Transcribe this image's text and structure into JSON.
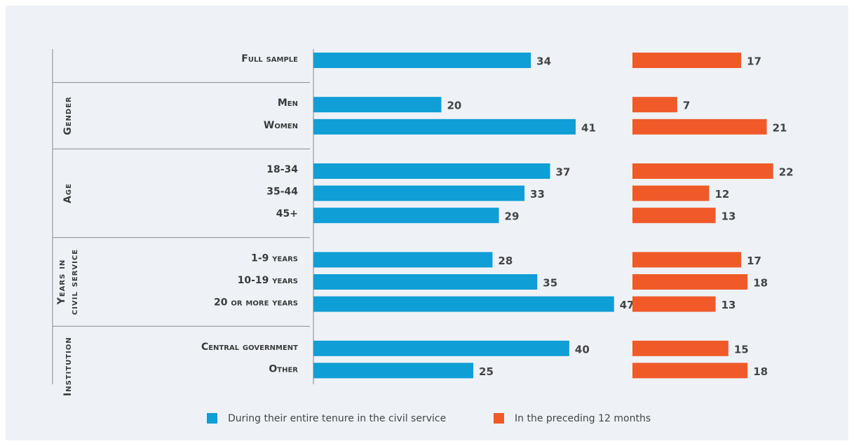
{
  "chart_data": {
    "type": "bar",
    "categories": [
      "Full sample",
      "Men",
      "Women",
      "18-34",
      "35-44",
      "45+",
      "1-9 years",
      "10-19 years",
      "20 or more years",
      "Central government",
      "Other"
    ],
    "category_groups": [
      null,
      "Gender",
      "Gender",
      "Age",
      "Age",
      "Age",
      "Years in civil service",
      "Years in civil service",
      "Years in civil service",
      "Institution",
      "Institution"
    ],
    "series": [
      {
        "name": "During their entire tenure in the civil service",
        "color": "#0f9ed5",
        "values": [
          34,
          20,
          41,
          37,
          33,
          29,
          28,
          35,
          47,
          40,
          25
        ]
      },
      {
        "name": "In the preceding 12 months",
        "color": "#f05a28",
        "values": [
          17,
          7,
          21,
          22,
          12,
          13,
          17,
          18,
          13,
          15,
          18
        ]
      }
    ],
    "xlim": [
      0,
      49
    ],
    "legend": "bottom"
  }
}
